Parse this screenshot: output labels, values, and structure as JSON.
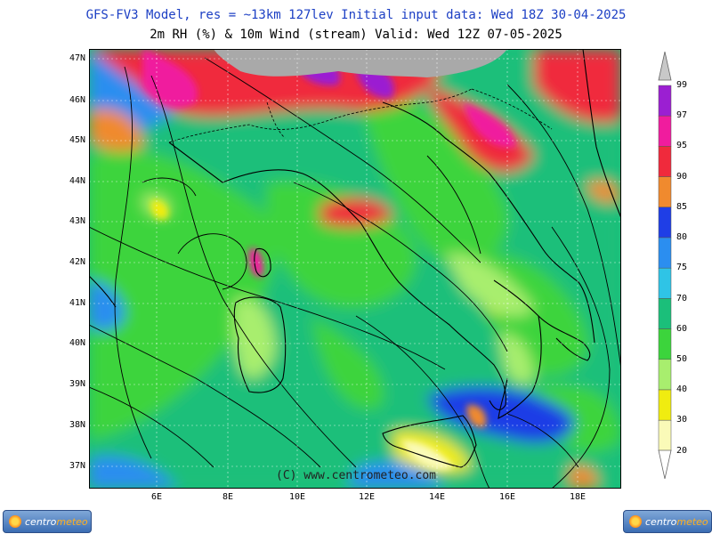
{
  "header": {
    "line1": "GFS-FV3 Model, res = ~13km 127lev   Initial input data: Wed 18Z 30-04-2025",
    "line2": "2m RH (%) & 10m Wind (stream)  Valid: Wed 12Z 07-05-2025"
  },
  "map": {
    "lat_labels": [
      "47N",
      "46N",
      "45N",
      "44N",
      "43N",
      "42N",
      "41N",
      "40N",
      "39N",
      "38N",
      "37N"
    ],
    "lon_labels": [
      "6E",
      "8E",
      "10E",
      "12E",
      "14E",
      "16E",
      "18E"
    ],
    "copyright": "(C) www.centrometeo.com",
    "no_data_color": "#a9a9a9"
  },
  "scale": {
    "labels": [
      "99",
      "97",
      "95",
      "90",
      "85",
      "80",
      "75",
      "70",
      "60",
      "50",
      "40",
      "30",
      "20"
    ],
    "colors": [
      "#9b1fd2",
      "#f01c9e",
      "#f02a3c",
      "#f08a2e",
      "#1f3ee6",
      "#2b8ef0",
      "#2fc4e6",
      "#1bbf7a",
      "#3cd43c",
      "#a8ee6e",
      "#f0ec10",
      "#fafab8"
    ]
  },
  "logos": {
    "left": {
      "text_a": "centro",
      "text_b": "meteo"
    },
    "right": {
      "text_a": "centro",
      "text_b": "meteo"
    }
  }
}
